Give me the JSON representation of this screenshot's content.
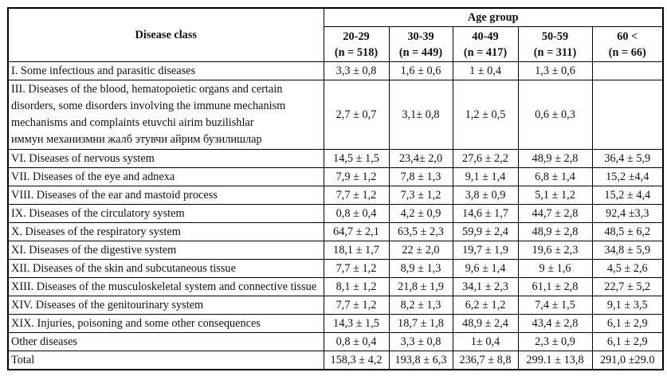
{
  "table": {
    "header": {
      "disease_class_label": "Disease class",
      "age_group_label": "Age group",
      "columns": [
        {
          "range": "20-29",
          "n": "(n = 518)"
        },
        {
          "range": "30-39",
          "n": "(n = 449)"
        },
        {
          "range": "40-49",
          "n": "(n = 417)"
        },
        {
          "range": "50-59",
          "n": "(n = 311)"
        },
        {
          "range": "60 <",
          "n": "(n = 66)"
        }
      ]
    },
    "rows": [
      {
        "label": "I. Some infectious and parasitic diseases",
        "values": [
          "3,3 ± 0,8",
          "1,6 ± 0,6",
          "1 ± 0,4",
          "1,3 ± 0,6",
          ""
        ]
      },
      {
        "label_lines": [
          "III. Diseases of the blood, hematopoietic organs and certain",
          "disorders, some disorders involving the immune mechanism",
          "mechanisms and complaints etuvchi airim buzilishlar",
          "иммун механизмни жалб этувчи айрим бузилишлар"
        ],
        "values": [
          "2,7 ± 0,7",
          "3,1± 0,8",
          "1,2 ± 0,5",
          "0,6 ± 0,3",
          ""
        ]
      },
      {
        "label": "VI. Diseases of nervous system",
        "values": [
          "14,5 ± 1,5",
          "23,4± 2,0",
          "27,6 ± 2,2",
          "48,9 ± 2,8",
          "36,4 ± 5,9"
        ]
      },
      {
        "label": "VII. Diseases of the eye and adnexa",
        "values": [
          "7,9 ± 1,2",
          "7,8 ± 1,3",
          "9,1 ± 1,4",
          "6,8 ± 1,4",
          "15,2 ±4,4"
        ]
      },
      {
        "label": "VIII. Diseases of the ear and mastoid process",
        "values": [
          "7,7 ± 1,2",
          "7,3 ± 1,2",
          "3,8 ± 0,9",
          "5,1 ± 1,2",
          "15,2 ± 4,4"
        ]
      },
      {
        "label": "IX. Diseases of the circulatory system",
        "values": [
          "0,8 ± 0,4",
          "4,2 ± 0,9",
          "14,6 ± 1,7",
          "44,7 ± 2,8",
          "92,4 ±3,3"
        ]
      },
      {
        "label": "X. Diseases of the respiratory system",
        "values": [
          "64,7 ± 2,1",
          "63,5 ± 2,3",
          "59,9 ± 2,4",
          "48,9 ± 2,8",
          "48,5 ± 6,2"
        ]
      },
      {
        "label": "XI. Diseases of the digestive system",
        "values": [
          "18,1 ± 1,7",
          "22 ± 2,0",
          "19,7 ± 1,9",
          "19,6 ± 2,3",
          "34,8 ± 5,9"
        ]
      },
      {
        "label": "XII. Diseases of the skin and subcutaneous tissue",
        "values": [
          "7,7 ± 1,2",
          "8,9 ± 1,3",
          "9,6 ± 1,4",
          "9 ± 1,6",
          "4,5 ± 2,6"
        ]
      },
      {
        "label": "XIII. Diseases of the musculoskeletal system and connective tissue",
        "values": [
          "8,1 ± 1,2",
          "21,8 ± 1,9",
          "34,1 ± 2,3",
          "61,1 ± 2,8",
          "22,7 ± 5,2"
        ]
      },
      {
        "label": "XIV. Diseases of the genitourinary system",
        "values": [
          "7,7 ± 1,2",
          "8,2 ± 1,3",
          "6,2 ± 1,2",
          "7,4 ± 1,5",
          "9,1 ± 3,5"
        ]
      },
      {
        "label": "XIX. Injuries, poisoning and some other consequences",
        "values": [
          "14,3 ± 1,5",
          "18,7 ± 1,8",
          "48,9 ± 2,4",
          "43,4 ± 2,8",
          "6,1 ± 2,9"
        ]
      },
      {
        "label": "Other diseases",
        "values": [
          "0,8 ± 0,4",
          "3,3 ± 0,8",
          "1± 0,4",
          "2,3 ± 0,9",
          "6,1 ± 2,9"
        ]
      },
      {
        "label": "Total",
        "values": [
          "158,3 ± 4,2",
          "193,8 ± 6,3",
          "236,7 ± 8,8",
          "299.1 ± 13,8",
          "291,0 ±29.0"
        ]
      }
    ]
  },
  "colors": {
    "border": "#000000",
    "text": "#111111",
    "background": "#ffffff"
  }
}
